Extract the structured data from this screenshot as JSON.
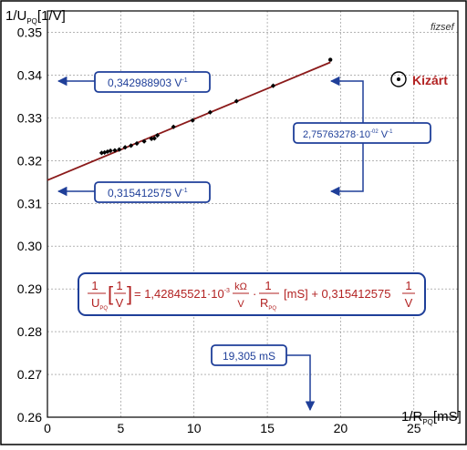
{
  "chart_data": {
    "type": "scatter",
    "title": "",
    "ylabel_main": "1/U",
    "ylabel_sub": "PQ",
    "ylabel_unit": "[1/V]",
    "xlabel_main": "1/R",
    "xlabel_sub": "PQ",
    "xlabel_unit": "[mS]",
    "xlim": [
      0,
      28
    ],
    "ylim": [
      0.26,
      0.355
    ],
    "xticks": [
      0,
      5,
      10,
      15,
      20,
      25
    ],
    "yticks": [
      0.26,
      0.27,
      0.28,
      0.29,
      0.3,
      0.31,
      0.32,
      0.33,
      0.34,
      0.35
    ],
    "ytick_labels": [
      "0.26",
      "0.27",
      "0.28",
      "0.29",
      "0.30",
      "0.31",
      "0.32",
      "0.33",
      "0.34",
      "0.35"
    ],
    "grid": true,
    "series": [
      {
        "points": [
          [
            3.7,
            0.3218
          ],
          [
            3.9,
            0.3219
          ],
          [
            4.1,
            0.3221
          ],
          [
            4.3,
            0.3223
          ],
          [
            4.6,
            0.3224
          ],
          [
            4.9,
            0.3226
          ],
          [
            5.3,
            0.3231
          ],
          [
            5.7,
            0.3235
          ],
          [
            6.1,
            0.324
          ],
          [
            6.6,
            0.3245
          ],
          [
            7.1,
            0.3251
          ],
          [
            7.3,
            0.3252
          ],
          [
            7.5,
            0.3259
          ],
          [
            8.6,
            0.3279
          ],
          [
            9.9,
            0.3294
          ],
          [
            11.1,
            0.3313
          ],
          [
            12.9,
            0.3339
          ],
          [
            15.4,
            0.3375
          ],
          [
            19.3,
            0.3436
          ]
        ],
        "excluded": [
          [
            19.3,
            0.3436
          ]
        ]
      }
    ],
    "fit_line": {
      "slope": 0.00142845521,
      "intercept": 0.315412575,
      "x_from": 0,
      "x_to": 19.305
    },
    "colors": {
      "fit_line": "#8b1a1a",
      "box_border": "#1f3f99",
      "arrow": "#1f3f99",
      "equation_text": "#b22222",
      "points": "#000000",
      "grid": "#888888"
    }
  },
  "annotations": {
    "value_at_max": "0,342988903 V",
    "value_at_max_sup": "-1",
    "difference": "2,75763278·10",
    "difference_exp": "-02",
    "difference_unit": " V",
    "difference_unit_sup": "-1",
    "intercept": "0,315412575 V",
    "intercept_sup": "-1",
    "max_x": "19,305 mS",
    "excluded_label": "Kizárt",
    "watermark": "fizsef"
  },
  "equation": {
    "lhs_num": "1",
    "lhs_den": "U",
    "lhs_den_sub": "PQ",
    "lhs_bracket_num": "1",
    "lhs_bracket_den": "V",
    "eq_mid": "= 1,42845521·10",
    "eq_exp": "-3",
    "unit_num": "kΩ",
    "unit_den": "V",
    "dot": "·",
    "frac2_num": "1",
    "frac2_den": "R",
    "frac2_den_sub": "PQ",
    "tail": "[mS] + 0,315412575",
    "frac3_num": "1",
    "frac3_den": "V"
  }
}
